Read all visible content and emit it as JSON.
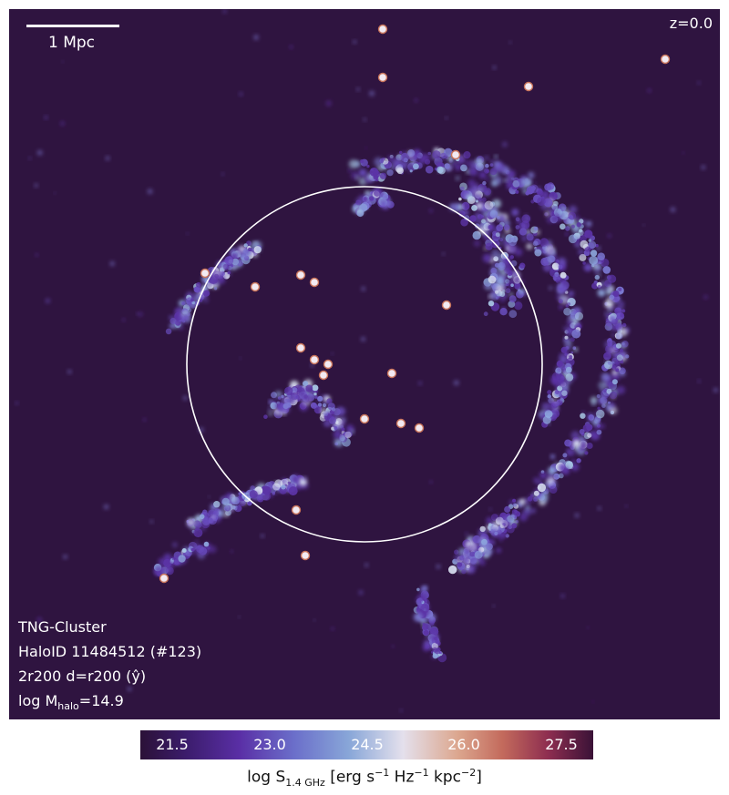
{
  "scale_bar": {
    "label": "1 Mpc"
  },
  "redshift": "z=0.0",
  "info": {
    "line1": "TNG-Cluster",
    "line2": "HaloID 11484512 (#123)",
    "line3": "2r200 d=r200 (ŷ)",
    "line4_prefix": "log M",
    "line4_sub": "halo",
    "line4_suffix": "=14.9"
  },
  "colorbar": {
    "ticks": [
      "21.5",
      "23.0",
      "24.5",
      "26.0",
      "27.5"
    ],
    "label_prefix": "log S",
    "label_sub": "1.4 GHz",
    "label_mid": " [erg s",
    "label_sup1": "−1",
    "label_mid2": " Hz",
    "label_sup2": "−1",
    "label_mid3": " kpc",
    "label_sup3": "−2",
    "label_end": "]"
  },
  "colors": {
    "background": "#2f1440",
    "circle": "#ffffff"
  }
}
